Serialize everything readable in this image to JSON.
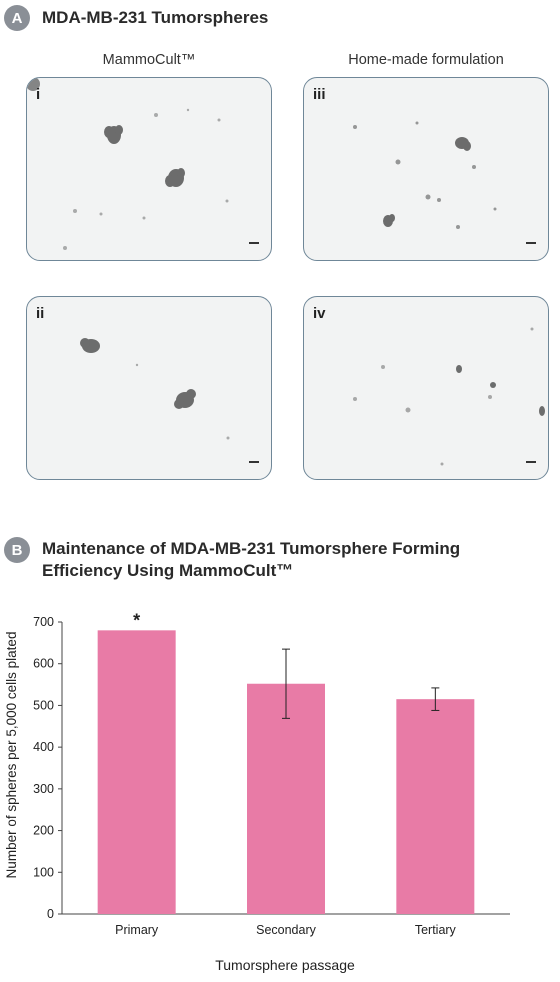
{
  "panel_a": {
    "badge": "A",
    "title": "MDA-MB-231 Tumorspheres",
    "col_labels": [
      "MammoCult™",
      "Home-made formulation"
    ],
    "images": [
      {
        "label": "i"
      },
      {
        "label": "iii"
      },
      {
        "label": "ii"
      },
      {
        "label": "iv"
      }
    ]
  },
  "panel_b": {
    "badge": "B",
    "title_line1": "Maintenance of MDA-MB-231 Tumorsphere Forming",
    "title_line2": "Efficiency Using MammoCult™"
  },
  "colors": {
    "bar": "#e87ba6",
    "badge": "#8a8f96",
    "frame": "#6f8798"
  },
  "chart_data": {
    "type": "bar",
    "categories": [
      "Primary",
      "Secondary",
      "Tertiary"
    ],
    "values": [
      680,
      552,
      515
    ],
    "error": [
      null,
      83,
      27
    ],
    "annotations": [
      "*",
      "",
      ""
    ],
    "xlabel": "Tumorsphere passage",
    "ylabel": "Number of spheres per 5,000 cells plated",
    "ylim": [
      0,
      700
    ],
    "yticks": [
      0,
      100,
      200,
      300,
      400,
      500,
      600,
      700
    ],
    "grid": false,
    "legend": "none"
  }
}
